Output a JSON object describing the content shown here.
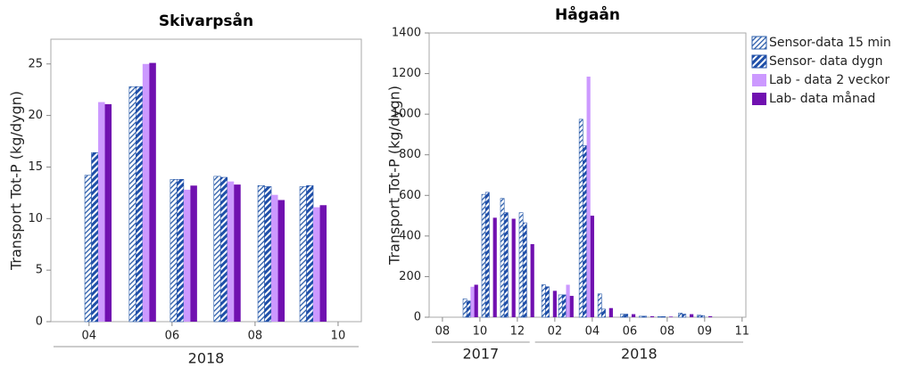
{
  "chart_data": [
    {
      "type": "bar",
      "title": "Skivarpsån",
      "y_label": "Transport Tot-P (kg/dygn)",
      "x": [
        4.22,
        5.29,
        6.28,
        7.33,
        8.39,
        9.4
      ],
      "xlim": [
        3.08,
        10.56
      ],
      "xticks": [
        {
          "value": 4,
          "label": "04"
        },
        {
          "value": 6,
          "label": "06"
        },
        {
          "value": 8,
          "label": "08"
        },
        {
          "value": 10,
          "label": "10"
        }
      ],
      "x_group_labels": [
        {
          "label": "2018",
          "from": 3.08,
          "to": 10.56
        }
      ],
      "ylim": [
        0,
        27.4
      ],
      "yticks": [
        0,
        5,
        10,
        15,
        20,
        25
      ],
      "series": [
        {
          "name": "Sensor-data 15 min",
          "color": "#2a5caa",
          "pattern": "hatch-thin",
          "values": [
            14.2,
            22.8,
            13.8,
            14.1,
            13.2,
            13.1
          ]
        },
        {
          "name": "Sensor- data dygn",
          "color": "#1f4fa8",
          "pattern": "hatch-thick",
          "values": [
            16.4,
            22.8,
            13.8,
            14.0,
            13.1,
            13.2
          ]
        },
        {
          "name": "Lab - data 2 veckor",
          "color": "#cc99ff",
          "pattern": "solid",
          "values": [
            21.3,
            25.0,
            12.8,
            13.6,
            12.3,
            11.1
          ]
        },
        {
          "name": "Lab- data månad",
          "color": "#7010b0",
          "pattern": "solid",
          "values": [
            21.1,
            25.1,
            13.2,
            13.3,
            11.8,
            11.3
          ]
        }
      ]
    },
    {
      "type": "bar",
      "title": "Hågaån",
      "y_label": "Transport Tot-P (kg/dygn)",
      "x": [
        9.5,
        10.5,
        11.5,
        12.5,
        13.7,
        14.6,
        15.7,
        16.7,
        17.9,
        18.9,
        19.9,
        21,
        22
      ],
      "xlim": [
        7.29,
        24.2
      ],
      "xticks": [
        {
          "value": 8,
          "label": "08"
        },
        {
          "value": 10,
          "label": "10"
        },
        {
          "value": 12,
          "label": "12"
        },
        {
          "value": 14,
          "label": "02"
        },
        {
          "value": 16,
          "label": "04"
        },
        {
          "value": 18,
          "label": "06"
        },
        {
          "value": 20,
          "label": "08"
        },
        {
          "value": 22,
          "label": "09"
        },
        {
          "value": 24,
          "label": "11"
        }
      ],
      "x_group_labels": [
        {
          "label": "2017",
          "from": 7.29,
          "to": 12.8
        },
        {
          "label": "2018",
          "from": 12.8,
          "to": 24.2
        }
      ],
      "ylim": [
        0,
        1400
      ],
      "yticks": [
        0,
        200,
        400,
        600,
        800,
        1000,
        1200,
        1400
      ],
      "legend": "outside-right",
      "series": [
        {
          "name": "Sensor-data 15 min",
          "color": "#2a5caa",
          "pattern": "hatch-thin",
          "values": [
            90,
            605,
            585,
            515,
            160,
            110,
            975,
            115,
            15,
            5,
            3,
            20,
            10
          ]
        },
        {
          "name": "Sensor- data dygn",
          "color": "#1f4fa8",
          "pattern": "hatch-thick",
          "values": [
            80,
            615,
            515,
            465,
            150,
            110,
            845,
            40,
            15,
            5,
            3,
            15,
            8
          ]
        },
        {
          "name": "Lab - data 2 veckor",
          "color": "#cc99ff",
          "pattern": "solid",
          "values": [
            150,
            null,
            null,
            null,
            null,
            160,
            1185,
            null,
            null,
            null,
            null,
            null,
            null
          ]
        },
        {
          "name": "Lab- data månad",
          "color": "#7010b0",
          "pattern": "solid",
          "values": [
            160,
            490,
            485,
            360,
            130,
            105,
            500,
            45,
            15,
            5,
            3,
            15,
            5
          ]
        }
      ]
    }
  ]
}
